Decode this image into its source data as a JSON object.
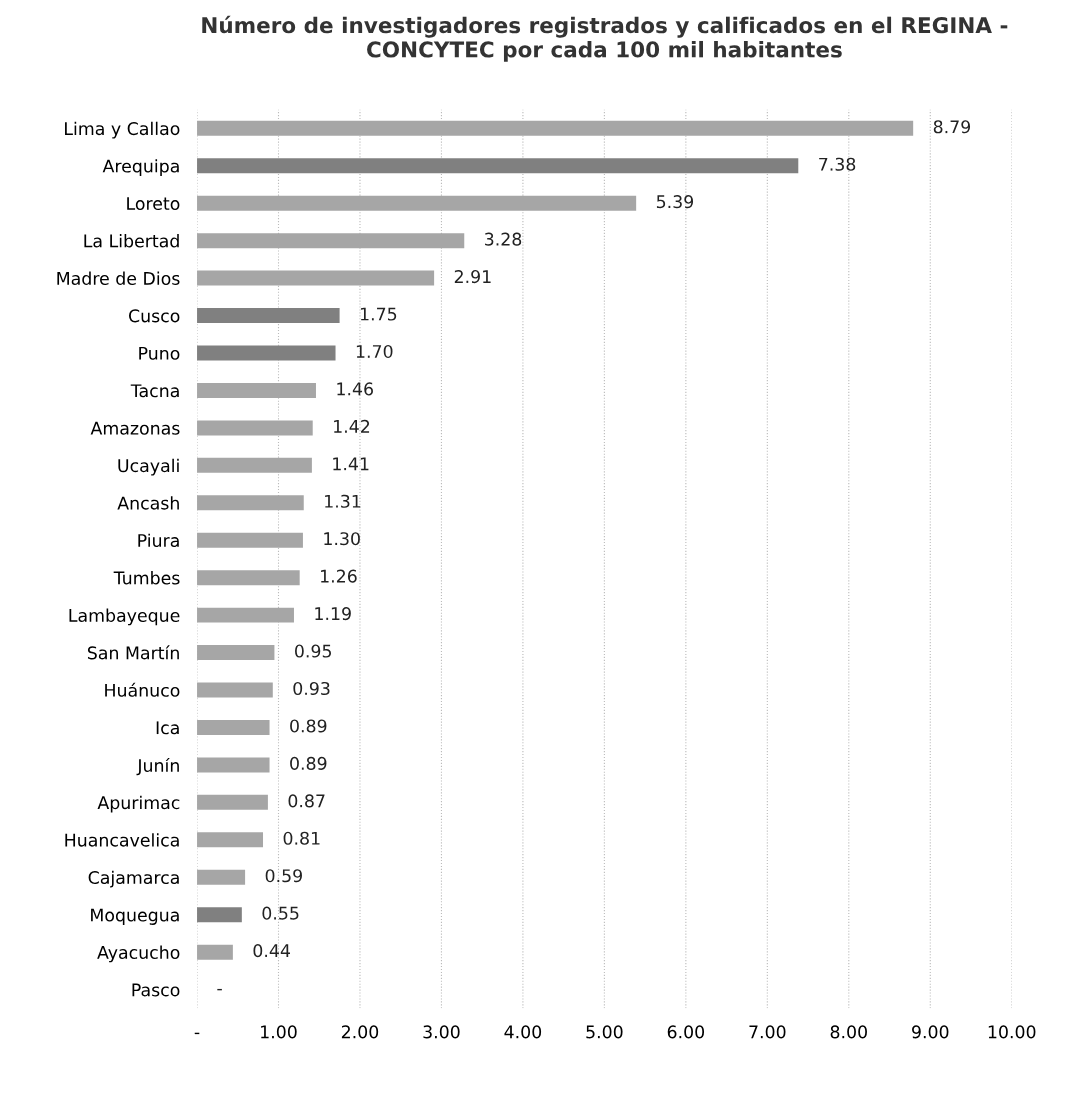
{
  "chart_data": {
    "type": "bar",
    "orientation": "horizontal",
    "title": "Número de investigadores registrados y calificados en el REGINA - CONCYTEC por cada 100 mil habitantes",
    "categories": [
      "Lima y Callao",
      "Arequipa",
      "Loreto",
      "La Libertad",
      "Madre de Dios",
      "Cusco",
      "Puno",
      "Tacna",
      "Amazonas",
      "Ucayali",
      "Ancash",
      "Piura",
      "Tumbes",
      "Lambayeque",
      "San Martín",
      "Huánuco",
      "Ica",
      "Junín",
      "Apurimac",
      "Huancavelica",
      "Cajamarca",
      "Moquegua",
      "Ayacucho",
      "Pasco"
    ],
    "values": [
      8.79,
      7.38,
      5.39,
      3.28,
      2.91,
      1.75,
      1.7,
      1.46,
      1.42,
      1.41,
      1.31,
      1.3,
      1.26,
      1.19,
      0.95,
      0.93,
      0.89,
      0.89,
      0.87,
      0.81,
      0.59,
      0.55,
      0.44,
      0
    ],
    "value_labels": [
      "8.79",
      "7.38",
      "5.39",
      "3.28",
      "2.91",
      "1.75",
      "1.70",
      "1.46",
      "1.42",
      "1.41",
      "1.31",
      "1.30",
      "1.26",
      "1.19",
      "0.95",
      "0.93",
      "0.89",
      "0.89",
      "0.87",
      "0.81",
      "0.59",
      "0.55",
      "0.44",
      "-"
    ],
    "colors": [
      "#a6a6a6",
      "#808080",
      "#a6a6a6",
      "#a6a6a6",
      "#a6a6a6",
      "#808080",
      "#808080",
      "#a6a6a6",
      "#a6a6a6",
      "#a6a6a6",
      "#a6a6a6",
      "#a6a6a6",
      "#a6a6a6",
      "#a6a6a6",
      "#a6a6a6",
      "#a6a6a6",
      "#a6a6a6",
      "#a6a6a6",
      "#a6a6a6",
      "#a6a6a6",
      "#a6a6a6",
      "#808080",
      "#a6a6a6",
      "#a6a6a6"
    ],
    "xlim": [
      0,
      10
    ],
    "xticks": [
      {
        "value": 0,
        "label": "-"
      },
      {
        "value": 1,
        "label": "1.00"
      },
      {
        "value": 2,
        "label": "2.00"
      },
      {
        "value": 3,
        "label": "3.00"
      },
      {
        "value": 4,
        "label": "4.00"
      },
      {
        "value": 5,
        "label": "5.00"
      },
      {
        "value": 6,
        "label": "6.00"
      },
      {
        "value": 7,
        "label": "7.00"
      },
      {
        "value": 8,
        "label": "8.00"
      },
      {
        "value": 9,
        "label": "9.00"
      },
      {
        "value": 10,
        "label": "10.00"
      }
    ],
    "grid": "x",
    "legend": false
  }
}
